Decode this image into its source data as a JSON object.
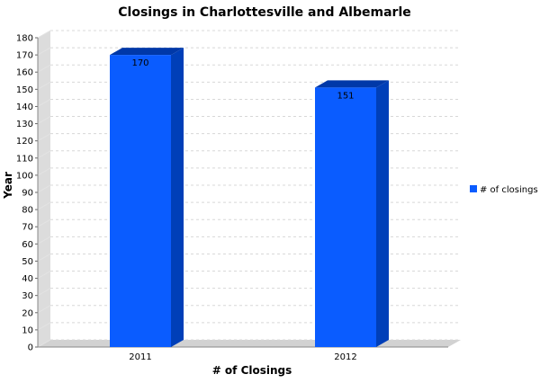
{
  "chart_data": {
    "type": "bar",
    "title": "Closings in Charlottesville and Albemarle",
    "xlabel": "# of Closings",
    "ylabel": "Year",
    "categories": [
      "2011",
      "2012"
    ],
    "series": [
      {
        "name": "# of closings",
        "values": [
          170,
          151
        ],
        "color": "#0a5cff"
      }
    ],
    "data_labels": [
      "170",
      "151"
    ],
    "ylim": [
      0,
      180
    ],
    "yticks": [
      0,
      10,
      20,
      30,
      40,
      50,
      60,
      70,
      80,
      90,
      100,
      110,
      120,
      130,
      140,
      150,
      160,
      170,
      180
    ],
    "grid": true,
    "legend": "right",
    "three_d": true
  }
}
